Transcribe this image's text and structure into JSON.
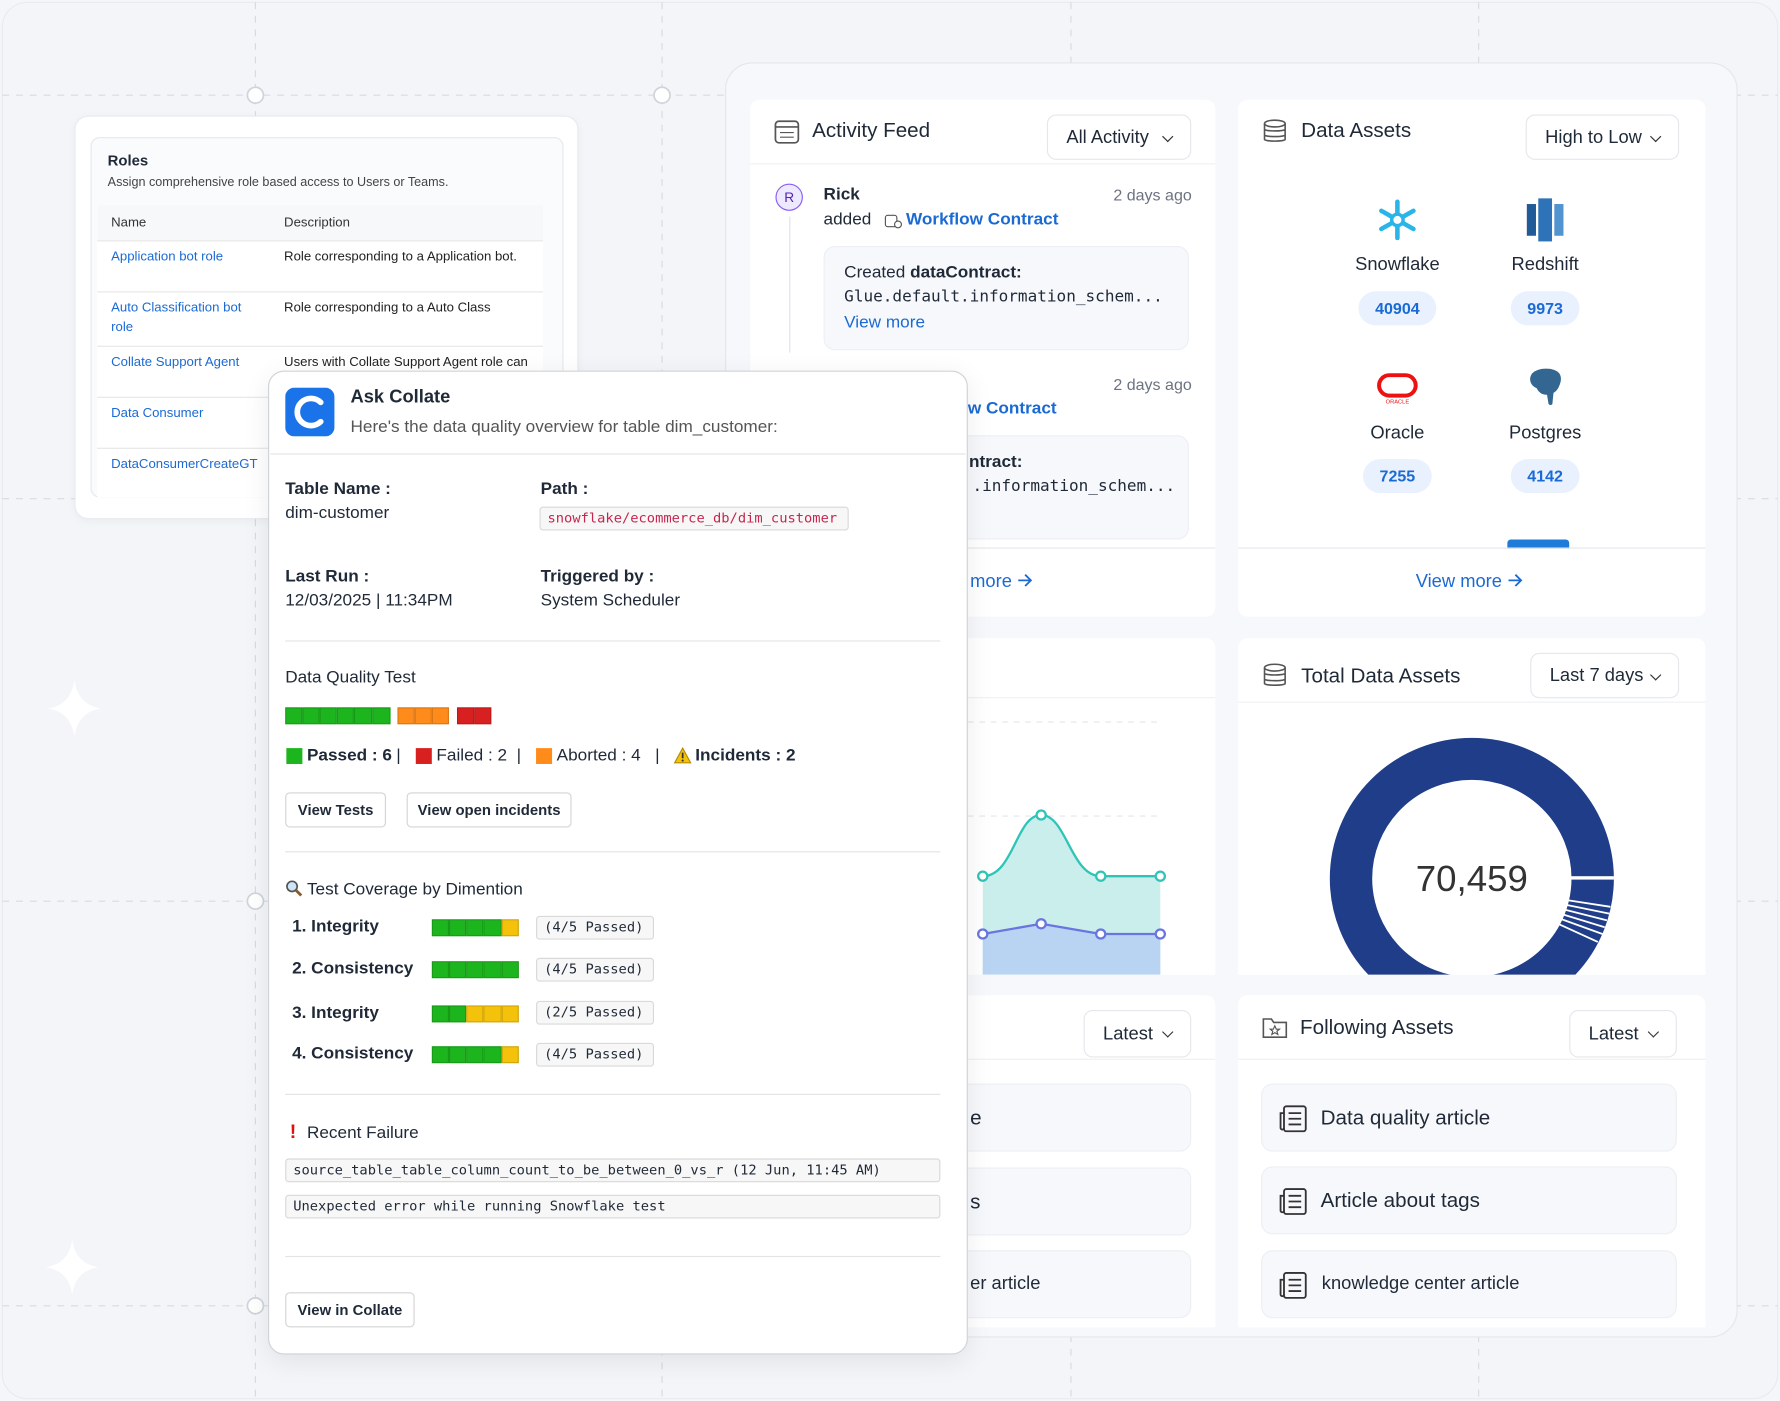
{
  "roles": {
    "title": "Roles",
    "subtitle": "Assign comprehensive role based access to Users or Teams.",
    "columns": [
      "Name",
      "Description"
    ],
    "rows": [
      {
        "name": "Application bot role",
        "description": "Role corresponding to a Application bot."
      },
      {
        "name": "Auto Classification bot role",
        "description": "Role corresponding to a Auto Class"
      },
      {
        "name": "Collate Support Agent",
        "description": "Users with Collate Support Agent role can"
      },
      {
        "name": "Data Consumer"
      },
      {
        "name": "DataConsumerCreateGT"
      }
    ]
  },
  "activity_feed": {
    "title": "Activity Feed",
    "filter": "All Activity",
    "items": [
      {
        "avatar": "R",
        "user": "Rick",
        "time": "2 days ago",
        "action": "added",
        "entity": "Workflow Contract",
        "prefix": "Created",
        "entity_type": "dataContract:",
        "detail": "Glue.default.information_schem...",
        "link": "View more"
      },
      {
        "time": "2 days ago",
        "entity": "w Contract",
        "entity_type": "ntract:",
        "detail": ".information_schem..."
      }
    ],
    "footer": "more"
  },
  "data_assets": {
    "title": "Data Assets",
    "sort": "High to Low",
    "items": [
      {
        "name": "Snowflake",
        "count": "40904"
      },
      {
        "name": "Redshift",
        "count": "9973"
      },
      {
        "name": "Oracle",
        "count": "7255"
      },
      {
        "name": "Postgres",
        "count": "4142"
      }
    ],
    "footer": "View more"
  },
  "total_data_assets": {
    "title": "Total Data Assets",
    "range": "Last 7 days",
    "total": "70,459"
  },
  "my_data": {
    "sort": "Latest",
    "items": [
      "e",
      "s",
      "er article"
    ]
  },
  "following_assets": {
    "title": "Following Assets",
    "sort": "Latest",
    "items": [
      "Data quality article",
      "Article about tags",
      "knowledge center article"
    ]
  },
  "ask_collate": {
    "title": "Ask Collate",
    "subtitle": "Here's the data quality overview for table dim_customer:",
    "table_name_label": "Table Name :",
    "table_name": "dim-customer",
    "path_label": "Path :",
    "path": "snowflake/ecommerce_db/dim_customer",
    "last_run_label": "Last Run :",
    "last_run": "12/03/2025 | 11:34PM",
    "triggered_label": "Triggered by :",
    "triggered_by": "System Scheduler",
    "dq_title": "Data Quality Test",
    "legend": [
      "Passed : 6",
      "Failed : 2",
      "Aborted : 4",
      "Incidents : 2"
    ],
    "separator": "|",
    "buttons": [
      "View Tests",
      "View open incidents"
    ],
    "coverage_title": "Test Coverage by Dimention",
    "coverage": [
      {
        "name": "1. Integrity",
        "result": "(4/5 Passed)"
      },
      {
        "name": "2. Consistency",
        "result": "(4/5 Passed)"
      },
      {
        "name": "3. Integrity",
        "result": "(2/5 Passed)"
      },
      {
        "name": "4. Consistency",
        "result": "(4/5 Passed)"
      }
    ],
    "failure_icon": "!",
    "failure_title": "Recent Failure",
    "failures": [
      "source_table_table_column_count_to_be_between_0_vs_r (12 Jun, 11:45 AM)",
      "Unexpected error while running Snowflake test"
    ],
    "cta": "View in Collate"
  }
}
